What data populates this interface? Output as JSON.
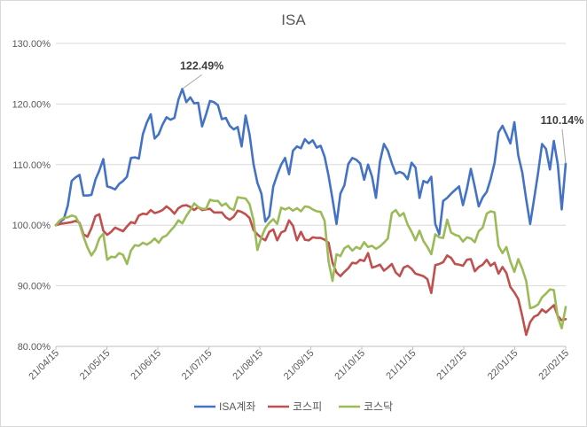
{
  "chart_data": {
    "type": "line",
    "title": "ISA",
    "ylim": [
      80,
      130
    ],
    "yticks": [
      "80.00%",
      "90.00%",
      "100.00%",
      "110.00%",
      "120.00%",
      "130.00%"
    ],
    "ytick_values": [
      80,
      90,
      100,
      110,
      120,
      130
    ],
    "xticks": [
      "21/04/15",
      "21/05/15",
      "21/06/15",
      "21/07/15",
      "21/08/15",
      "21/09/15",
      "21/10/15",
      "21/11/15",
      "21/12/15",
      "22/01/15",
      "22/02/15"
    ],
    "grid": true,
    "legend_position": "bottom",
    "series": [
      {
        "name": "ISA계좌",
        "color": "#4472C4",
        "values": [
          100.0,
          100.5,
          101.0,
          103.2,
          107.3,
          107.9,
          108.3,
          104.9,
          104.9,
          105.0,
          107.5,
          109.0,
          110.9,
          106.4,
          106.2,
          105.9,
          106.8,
          107.3,
          108.0,
          111.1,
          111.2,
          111.0,
          115.0,
          116.9,
          118.3,
          114.3,
          115.0,
          116.6,
          117.8,
          117.4,
          117.7,
          120.7,
          122.49,
          120.3,
          121.1,
          120.1,
          120.2,
          116.3,
          118.3,
          120.5,
          120.3,
          119.8,
          117.5,
          117.7,
          116.4,
          115.8,
          116.2,
          113.0,
          118.1,
          115.0,
          110.1,
          107.0,
          105.2,
          100.6,
          101.5,
          106.4,
          108.3,
          110.0,
          111.1,
          108.4,
          112.3,
          113.0,
          112.7,
          114.2,
          113.5,
          114.0,
          112.8,
          113.1,
          111.3,
          108.1,
          104.3,
          100.2,
          105.2,
          106.6,
          110.1,
          111.1,
          110.8,
          110.2,
          107.5,
          110.0,
          108.0,
          104.5,
          110.5,
          113.4,
          112.3,
          110.2,
          108.5,
          108.8,
          108.5,
          107.6,
          110.3,
          109.5,
          104.5,
          107.3,
          107.0,
          108.0,
          100.2,
          98.5,
          104.0,
          104.5,
          105.2,
          105.8,
          106.4,
          103.3,
          106.0,
          109.3,
          106.3,
          103.1,
          104.6,
          105.5,
          107.6,
          110.3,
          115.3,
          116.4,
          115.0,
          113.5,
          117.0,
          111.5,
          108.7,
          104.3,
          100.2,
          104.3,
          108.6,
          113.4,
          112.6,
          109.2,
          113.9,
          110.0,
          102.6,
          110.14
        ]
      },
      {
        "name": "코스피",
        "color": "#C0504D",
        "values": [
          100.0,
          100.2,
          100.3,
          100.4,
          100.5,
          100.7,
          100.4,
          98.5,
          98.1,
          99.5,
          101.5,
          101.8,
          99.1,
          98.4,
          98.9,
          99.6,
          99.3,
          99.0,
          99.8,
          100.5,
          100.3,
          101.6,
          101.9,
          101.8,
          102.5,
          102.0,
          102.2,
          102.5,
          103.1,
          102.6,
          101.9,
          102.8,
          103.2,
          103.3,
          103.0,
          102.5,
          103.0,
          102.5,
          102.6,
          102.7,
          102.1,
          102.1,
          102.1,
          101.3,
          100.9,
          101.4,
          102.4,
          102.2,
          101.8,
          101.2,
          99.2,
          98.5,
          97.9,
          97.5,
          98.9,
          99.3,
          97.5,
          98.8,
          99.1,
          100.8,
          99.9,
          97.5,
          98.9,
          97.6,
          97.5,
          98.0,
          97.9,
          97.9,
          97.6,
          97.1,
          93.8,
          92.2,
          91.6,
          92.3,
          92.9,
          93.8,
          93.7,
          94.3,
          94.1,
          95.4,
          93.0,
          93.2,
          93.5,
          92.5,
          93.0,
          93.6,
          92.2,
          91.6,
          93.0,
          93.3,
          92.8,
          92.0,
          91.8,
          91.6,
          91.1,
          88.8,
          93.4,
          93.6,
          93.9,
          95.0,
          94.6,
          93.6,
          93.5,
          93.3,
          94.3,
          94.4,
          92.4,
          93.1,
          93.5,
          94.3,
          93.3,
          93.8,
          92.0,
          93.1,
          92.1,
          89.8,
          88.9,
          87.8,
          85.0,
          81.9,
          84.0,
          84.9,
          85.2,
          86.1,
          85.6,
          86.2,
          86.8,
          85.0,
          84.3,
          84.5
        ]
      },
      {
        "name": "코스닥",
        "color": "#9BBB59",
        "values": [
          100.0,
          100.8,
          101.2,
          101.3,
          101.6,
          101.4,
          100.2,
          98.1,
          96.3,
          95.0,
          96.0,
          97.8,
          98.6,
          94.3,
          94.8,
          94.7,
          95.4,
          95.1,
          93.6,
          95.8,
          96.7,
          96.6,
          97.1,
          96.8,
          97.2,
          97.8,
          97.1,
          98.0,
          98.3,
          99.1,
          99.8,
          100.8,
          100.3,
          101.5,
          102.5,
          103.6,
          103.0,
          102.7,
          102.7,
          104.2,
          104.0,
          104.0,
          103.2,
          103.6,
          102.8,
          102.5,
          104.6,
          104.5,
          104.4,
          103.5,
          100.8,
          95.9,
          98.0,
          99.5,
          100.4,
          101.0,
          100.2,
          102.9,
          102.6,
          102.9,
          102.4,
          102.8,
          102.3,
          103.1,
          103.0,
          102.6,
          102.3,
          102.2,
          100.7,
          94.0,
          90.8,
          95.2,
          94.9,
          96.2,
          96.6,
          95.8,
          96.4,
          96.1,
          97.2,
          96.4,
          96.6,
          96.1,
          96.5,
          97.1,
          97.8,
          102.0,
          102.5,
          101.5,
          102.0,
          100.1,
          98.9,
          97.5,
          99.1,
          97.4,
          96.4,
          95.2,
          98.5,
          98.0,
          97.9,
          100.9,
          98.8,
          98.4,
          98.2,
          97.3,
          98.0,
          97.8,
          97.2,
          99.0,
          99.6,
          101.9,
          102.3,
          102.1,
          96.6,
          95.4,
          96.4,
          94.0,
          92.3,
          94.4,
          92.8,
          90.8,
          86.3,
          86.5,
          86.9,
          88.1,
          88.7,
          89.4,
          89.3,
          84.8,
          83.0,
          86.5
        ]
      }
    ],
    "annotations": [
      {
        "label": "122.49%",
        "series": "ISA계좌",
        "index": 32
      },
      {
        "label": "110.14%",
        "series": "ISA계좌",
        "index": 129
      }
    ]
  }
}
